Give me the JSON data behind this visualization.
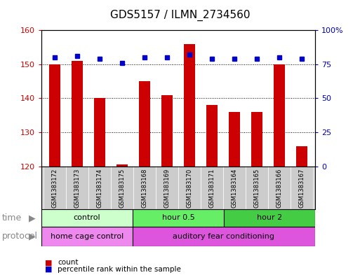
{
  "title": "GDS5157 / ILMN_2734560",
  "samples": [
    "GSM1383172",
    "GSM1383173",
    "GSM1383174",
    "GSM1383175",
    "GSM1383168",
    "GSM1383169",
    "GSM1383170",
    "GSM1383171",
    "GSM1383164",
    "GSM1383165",
    "GSM1383166",
    "GSM1383167"
  ],
  "counts": [
    150,
    151,
    140,
    120.5,
    145,
    141,
    156,
    138,
    136,
    136,
    150,
    126
  ],
  "percentile_ranks": [
    80,
    81,
    79,
    76,
    80,
    80,
    82,
    79,
    79,
    79,
    80,
    79
  ],
  "ylim_left": [
    120,
    160
  ],
  "ylim_right": [
    0,
    100
  ],
  "yticks_left": [
    120,
    130,
    140,
    150,
    160
  ],
  "yticks_right": [
    0,
    25,
    50,
    75,
    100
  ],
  "ytick_labels_right": [
    "0",
    "25",
    "50",
    "75",
    "100%"
  ],
  "bar_color": "#cc0000",
  "dot_color": "#0000cc",
  "bar_width": 0.5,
  "time_groups": [
    {
      "label": "control",
      "start": 0,
      "end": 4,
      "color": "#ccffcc"
    },
    {
      "label": "hour 0.5",
      "start": 4,
      "end": 8,
      "color": "#66ee66"
    },
    {
      "label": "hour 2",
      "start": 8,
      "end": 12,
      "color": "#44cc44"
    }
  ],
  "protocol_groups": [
    {
      "label": "home cage control",
      "start": 0,
      "end": 4,
      "color": "#ee88ee"
    },
    {
      "label": "auditory fear conditioning",
      "start": 4,
      "end": 12,
      "color": "#dd55dd"
    }
  ],
  "time_label": "time",
  "protocol_label": "protocol",
  "legend_bar_label": "count",
  "legend_dot_label": "percentile rank within the sample",
  "bg_color": "#ffffff",
  "plot_bg": "#ffffff",
  "tick_label_color_left": "#cc0000",
  "tick_label_color_right": "#0000bb",
  "sample_box_color": "#cccccc",
  "label_gray": "#888888"
}
